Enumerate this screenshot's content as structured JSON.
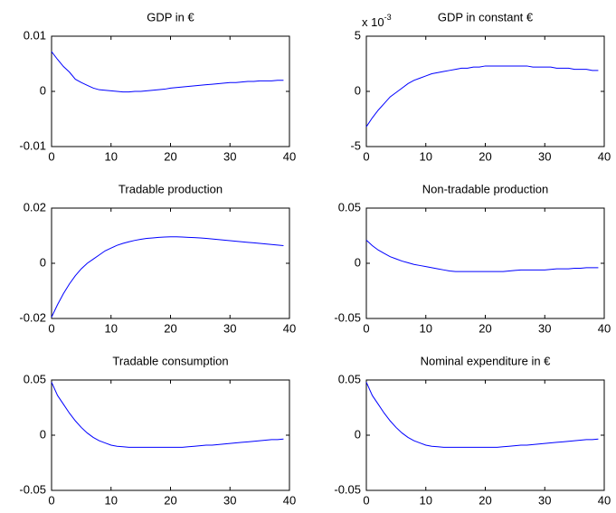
{
  "chart_data": [
    {
      "type": "line",
      "title": "GDP in €",
      "color": "#0000ff",
      "xlim": [
        0,
        40
      ],
      "xticks": [
        0,
        10,
        20,
        30,
        40
      ],
      "ylim": [
        -0.01,
        0.01
      ],
      "yticks": [
        -0.01,
        0,
        0.01
      ],
      "x": [
        0,
        1,
        2,
        3,
        4,
        5,
        6,
        7,
        8,
        9,
        10,
        11,
        12,
        13,
        14,
        15,
        16,
        17,
        18,
        19,
        20,
        21,
        22,
        23,
        24,
        25,
        26,
        27,
        28,
        29,
        30,
        31,
        32,
        33,
        34,
        35,
        36,
        37,
        38,
        39
      ],
      "values": [
        0.0072,
        0.0058,
        0.0045,
        0.0035,
        0.0022,
        0.0016,
        0.0011,
        0.0006,
        0.0003,
        0.0002,
        0.0001,
        0,
        -0.0001,
        -0.0001,
        0,
        0,
        0.0001,
        0.0002,
        0.0003,
        0.0004,
        0.0006,
        0.0007,
        0.0008,
        0.0009,
        0.001,
        0.0011,
        0.0012,
        0.0013,
        0.0014,
        0.0015,
        0.0016,
        0.0016,
        0.0017,
        0.0018,
        0.0018,
        0.0019,
        0.0019,
        0.0019,
        0.002,
        0.002
      ]
    },
    {
      "type": "line",
      "title": "GDP in constant €",
      "y_multiplier": {
        "base": "x 10",
        "exponent": "-3"
      },
      "color": "#0000ff",
      "xlim": [
        0,
        40
      ],
      "xticks": [
        0,
        10,
        20,
        30,
        40
      ],
      "ylim": [
        -0.005,
        0.005
      ],
      "yticks": [
        {
          "value": -0.005,
          "label": "-5"
        },
        0,
        {
          "value": 0.005,
          "label": "5"
        }
      ],
      "x": [
        0,
        1,
        2,
        3,
        4,
        5,
        6,
        7,
        8,
        9,
        10,
        11,
        12,
        13,
        14,
        15,
        16,
        17,
        18,
        19,
        20,
        21,
        22,
        23,
        24,
        25,
        26,
        27,
        28,
        29,
        30,
        31,
        32,
        33,
        34,
        35,
        36,
        37,
        38,
        39
      ],
      "values": [
        -0.0032,
        -0.0024,
        -0.0017,
        -0.0011,
        -0.0005,
        -0.0001,
        0.0003,
        0.0007,
        0.001,
        0.0012,
        0.0014,
        0.0016,
        0.0017,
        0.0018,
        0.0019,
        0.002,
        0.0021,
        0.0021,
        0.0022,
        0.0022,
        0.0023,
        0.0023,
        0.0023,
        0.0023,
        0.0023,
        0.0023,
        0.0023,
        0.0023,
        0.0022,
        0.0022,
        0.0022,
        0.0022,
        0.0021,
        0.0021,
        0.0021,
        0.002,
        0.002,
        0.002,
        0.0019,
        0.0019
      ]
    },
    {
      "type": "line",
      "title": "Tradable production",
      "color": "#0000ff",
      "xlim": [
        0,
        40
      ],
      "xticks": [
        0,
        10,
        20,
        30,
        40
      ],
      "ylim": [
        -0.02,
        0.02
      ],
      "yticks": [
        -0.02,
        0,
        0.02
      ],
      "x": [
        0,
        1,
        2,
        3,
        4,
        5,
        6,
        7,
        8,
        9,
        10,
        11,
        12,
        13,
        14,
        15,
        16,
        17,
        18,
        19,
        20,
        21,
        22,
        23,
        24,
        25,
        26,
        27,
        28,
        29,
        30,
        31,
        32,
        33,
        34,
        35,
        36,
        37,
        38,
        39
      ],
      "values": [
        -0.0195,
        -0.015,
        -0.011,
        -0.0075,
        -0.0045,
        -0.002,
        0,
        0.0015,
        0.003,
        0.0045,
        0.0055,
        0.0065,
        0.0072,
        0.0078,
        0.0083,
        0.0087,
        0.009,
        0.0092,
        0.0094,
        0.0095,
        0.0096,
        0.0096,
        0.0095,
        0.0094,
        0.0093,
        0.0092,
        0.009,
        0.0088,
        0.0086,
        0.0084,
        0.0082,
        0.008,
        0.0078,
        0.0076,
        0.0074,
        0.0072,
        0.007,
        0.0068,
        0.0066,
        0.0064
      ]
    },
    {
      "type": "line",
      "title": "Non-tradable production",
      "color": "#0000ff",
      "xlim": [
        0,
        40
      ],
      "xticks": [
        0,
        10,
        20,
        30,
        40
      ],
      "ylim": [
        -0.05,
        0.05
      ],
      "yticks": [
        -0.05,
        0,
        0.05
      ],
      "x": [
        0,
        1,
        2,
        3,
        4,
        5,
        6,
        7,
        8,
        9,
        10,
        11,
        12,
        13,
        14,
        15,
        16,
        17,
        18,
        19,
        20,
        21,
        22,
        23,
        24,
        25,
        26,
        27,
        28,
        29,
        30,
        31,
        32,
        33,
        34,
        35,
        36,
        37,
        38,
        39
      ],
      "values": [
        0.021,
        0.016,
        0.012,
        0.009,
        0.006,
        0.004,
        0.002,
        0.0005,
        -0.001,
        -0.002,
        -0.003,
        -0.004,
        -0.005,
        -0.006,
        -0.007,
        -0.0075,
        -0.0075,
        -0.0075,
        -0.0075,
        -0.0075,
        -0.0075,
        -0.0075,
        -0.0075,
        -0.0075,
        -0.007,
        -0.0065,
        -0.006,
        -0.006,
        -0.006,
        -0.006,
        -0.006,
        -0.0055,
        -0.005,
        -0.005,
        -0.005,
        -0.0045,
        -0.0045,
        -0.004,
        -0.004,
        -0.004
      ]
    },
    {
      "type": "line",
      "title": "Tradable consumption",
      "color": "#0000ff",
      "xlim": [
        0,
        40
      ],
      "xticks": [
        0,
        10,
        20,
        30,
        40
      ],
      "ylim": [
        -0.05,
        0.05
      ],
      "yticks": [
        -0.05,
        0,
        0.05
      ],
      "x": [
        0,
        1,
        2,
        3,
        4,
        5,
        6,
        7,
        8,
        9,
        10,
        11,
        12,
        13,
        14,
        15,
        16,
        17,
        18,
        19,
        20,
        21,
        22,
        23,
        24,
        25,
        26,
        27,
        28,
        29,
        30,
        31,
        32,
        33,
        34,
        35,
        36,
        37,
        38,
        39
      ],
      "values": [
        0.048,
        0.036,
        0.028,
        0.02,
        0.013,
        0.007,
        0.002,
        -0.002,
        -0.005,
        -0.007,
        -0.009,
        -0.01,
        -0.0105,
        -0.011,
        -0.011,
        -0.011,
        -0.011,
        -0.011,
        -0.011,
        -0.011,
        -0.011,
        -0.011,
        -0.011,
        -0.0105,
        -0.01,
        -0.0095,
        -0.009,
        -0.009,
        -0.0085,
        -0.008,
        -0.0075,
        -0.007,
        -0.0065,
        -0.006,
        -0.0055,
        -0.005,
        -0.0045,
        -0.004,
        -0.004,
        -0.0035
      ]
    },
    {
      "type": "line",
      "title": "Nominal expenditure in €",
      "color": "#0000ff",
      "xlim": [
        0,
        40
      ],
      "xticks": [
        0,
        10,
        20,
        30,
        40
      ],
      "ylim": [
        -0.05,
        0.05
      ],
      "yticks": [
        -0.05,
        0,
        0.05
      ],
      "x": [
        0,
        1,
        2,
        3,
        4,
        5,
        6,
        7,
        8,
        9,
        10,
        11,
        12,
        13,
        14,
        15,
        16,
        17,
        18,
        19,
        20,
        21,
        22,
        23,
        24,
        25,
        26,
        27,
        28,
        29,
        30,
        31,
        32,
        33,
        34,
        35,
        36,
        37,
        38,
        39
      ],
      "values": [
        0.048,
        0.036,
        0.028,
        0.02,
        0.013,
        0.007,
        0.002,
        -0.002,
        -0.005,
        -0.007,
        -0.009,
        -0.01,
        -0.0105,
        -0.011,
        -0.011,
        -0.011,
        -0.011,
        -0.011,
        -0.011,
        -0.011,
        -0.011,
        -0.011,
        -0.011,
        -0.0105,
        -0.01,
        -0.0095,
        -0.009,
        -0.009,
        -0.0085,
        -0.008,
        -0.0075,
        -0.007,
        -0.0065,
        -0.006,
        -0.0055,
        -0.005,
        -0.0045,
        -0.004,
        -0.004,
        -0.0035
      ]
    }
  ]
}
